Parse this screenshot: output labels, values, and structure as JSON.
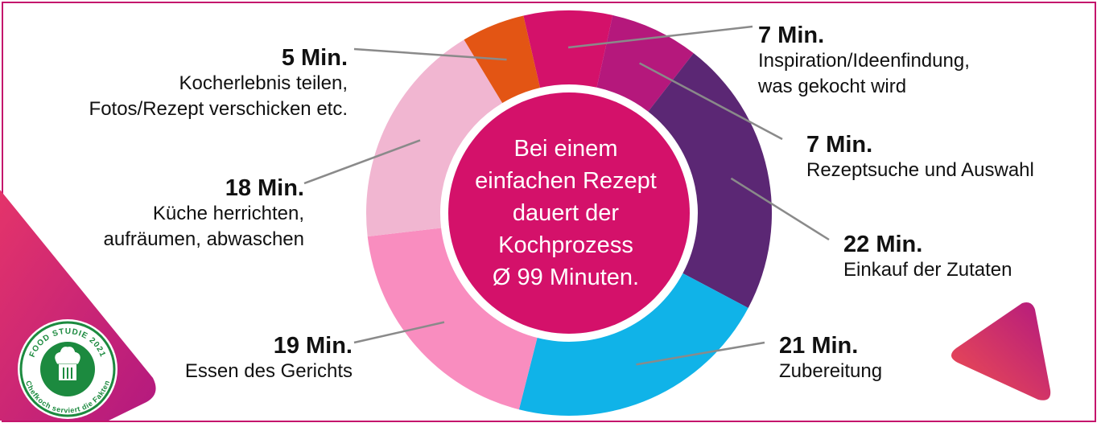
{
  "chart_data": {
    "type": "pie",
    "center_text": [
      "Bei einem",
      "einfachen Rezept",
      "dauert der",
      "Kochprozess",
      "Ø 99 Minuten."
    ],
    "segments": [
      {
        "minutes_label": "7 Min.",
        "value": 7,
        "description": [
          "Inspiration/Ideenfindung,",
          "was gekocht wird"
        ],
        "color": "#d4116a"
      },
      {
        "minutes_label": "7 Min.",
        "value": 7,
        "description": [
          "Rezeptsuche und Auswahl"
        ],
        "color": "#b5187c"
      },
      {
        "minutes_label": "22 Min.",
        "value": 22,
        "description": [
          "Einkauf der Zutaten"
        ],
        "color": "#5b2774"
      },
      {
        "minutes_label": "21 Min.",
        "value": 21,
        "description": [
          "Zubereitung"
        ],
        "color": "#10b3e8"
      },
      {
        "minutes_label": "19 Min.",
        "value": 19,
        "description": [
          "Essen des Gerichts"
        ],
        "color": "#f98dbf"
      },
      {
        "minutes_label": "18 Min.",
        "value": 18,
        "description": [
          "Küche herrichten,",
          "aufräumen, abwaschen"
        ],
        "color": "#f1b6d1"
      },
      {
        "minutes_label": "5 Min.",
        "value": 5,
        "description": [
          "Kocherlebnis teilen,",
          "Fotos/Rezept verschicken etc."
        ],
        "color": "#e35514"
      }
    ],
    "center_color": "#d4116a"
  },
  "badge": {
    "top_text": "FOOD STUDIE 2021",
    "bottom_text": "Chefkoch serviert die Fakten",
    "icon": "chef-hat-icon",
    "color": "#1c8a3f"
  }
}
